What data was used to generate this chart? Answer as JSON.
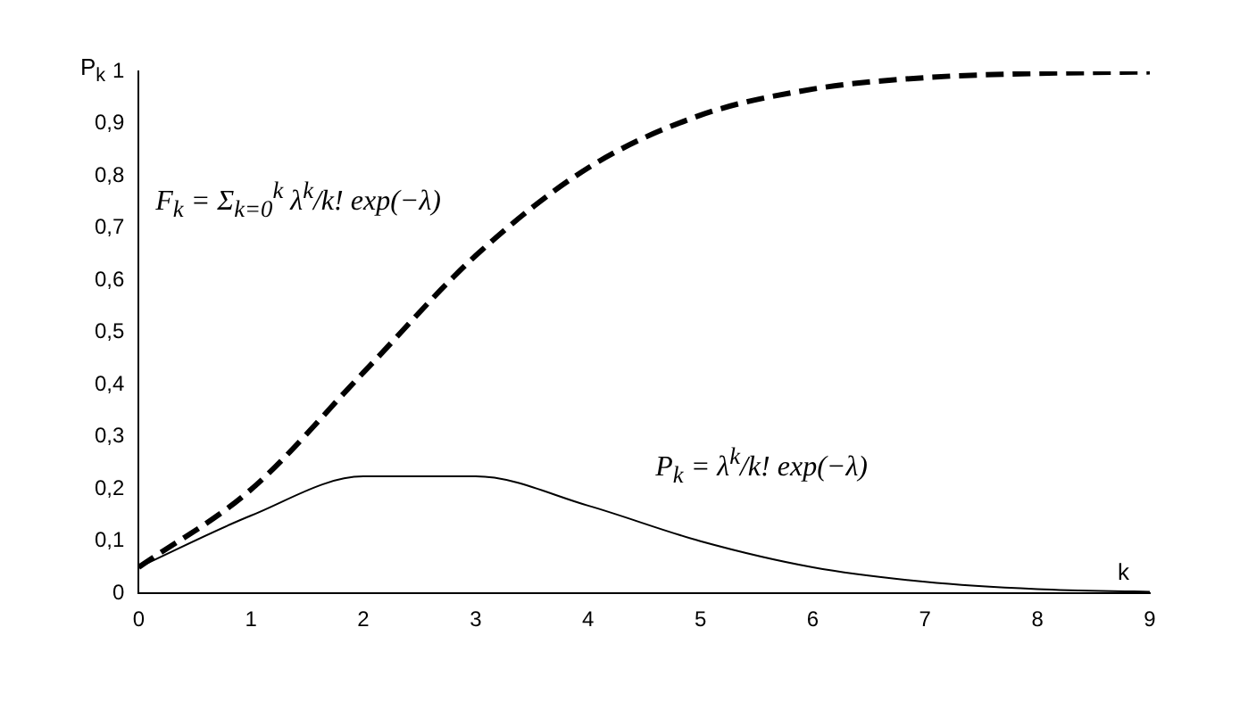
{
  "chart_data": {
    "type": "line",
    "xlabel": "k",
    "ylabel": "P$_{k}$",
    "x": [
      0,
      1,
      2,
      3,
      4,
      5,
      6,
      7,
      8,
      9
    ],
    "series": [
      {
        "name": "F$_{k}$ = Σ$_{k=0}$$^{k}$ λ$^{k}$/k! exp(−λ)",
        "color": "#000000",
        "line_style": "dashed",
        "values": [
          0.05,
          0.199,
          0.423,
          0.647,
          0.815,
          0.916,
          0.966,
          0.988,
          0.996,
          0.999
        ]
      },
      {
        "name": "P$_{k}$ = λ$^{k}$/k! exp(−λ)",
        "color": "#000000",
        "line_style": "solid",
        "values": [
          0.05,
          0.149,
          0.224,
          0.224,
          0.168,
          0.1,
          0.05,
          0.022,
          0.008,
          0.003
        ]
      }
    ],
    "xlim": [
      0,
      9
    ],
    "xticks": [
      0,
      1,
      2,
      3,
      4,
      5,
      6,
      7,
      8,
      9
    ],
    "ylim": [
      0,
      1
    ],
    "yticks": [
      0,
      {
        "value": 0.1,
        "label": "0,1"
      },
      {
        "value": 0.2,
        "label": "0,2"
      },
      {
        "value": 0.3,
        "label": "0,3"
      },
      {
        "value": 0.4,
        "label": "0,4"
      },
      {
        "value": 0.5,
        "label": "0,5"
      },
      {
        "value": 0.6,
        "label": "0,6"
      },
      {
        "value": 0.7,
        "label": "0,7"
      },
      {
        "value": 0.8,
        "label": "0,8"
      },
      {
        "value": 0.9,
        "label": "0,9"
      },
      1
    ],
    "grid": false,
    "legend": false,
    "marker": "none"
  }
}
